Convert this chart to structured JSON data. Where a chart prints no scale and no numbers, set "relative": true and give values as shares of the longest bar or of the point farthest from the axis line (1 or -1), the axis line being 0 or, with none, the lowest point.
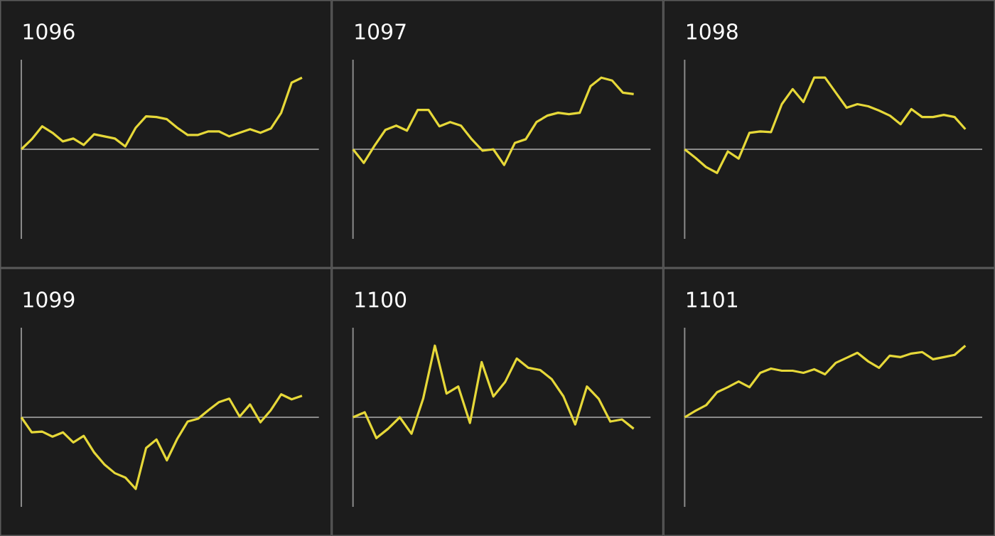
{
  "chart_data": [
    {
      "type": "line",
      "title": "1096",
      "relative": true,
      "color": "#e6d839",
      "categories": [
        null,
        null,
        null,
        null,
        null,
        null,
        null,
        null,
        null,
        null,
        null,
        null,
        null,
        null,
        null,
        null,
        null,
        null,
        null,
        null,
        null,
        null,
        null,
        null,
        null,
        null,
        null,
        null
      ],
      "values": [
        0,
        0.14,
        0.32,
        0.23,
        0.11,
        0.15,
        0.06,
        0.21,
        0.18,
        0.15,
        0.04,
        0.3,
        0.46,
        0.45,
        0.42,
        0.3,
        0.2,
        0.2,
        0.25,
        0.25,
        0.18,
        0.23,
        0.28,
        0.23,
        0.29,
        0.51,
        0.93,
        1
      ]
    },
    {
      "type": "line",
      "title": "1097",
      "relative": true,
      "color": "#e6d839",
      "categories": [
        null,
        null,
        null,
        null,
        null,
        null,
        null,
        null,
        null,
        null,
        null,
        null,
        null,
        null,
        null,
        null,
        null,
        null,
        null,
        null,
        null,
        null,
        null,
        null,
        null,
        null,
        null
      ],
      "values": [
        0,
        -0.19,
        0.05,
        0.27,
        0.33,
        0.26,
        0.55,
        0.55,
        0.32,
        0.38,
        0.33,
        0.14,
        -0.02,
        0,
        -0.22,
        0.09,
        0.14,
        0.38,
        0.47,
        0.51,
        0.49,
        0.51,
        0.88,
        1,
        0.96,
        0.79,
        0.77
      ]
    },
    {
      "type": "line",
      "title": "1098",
      "relative": true,
      "color": "#e6d839",
      "categories": [
        null,
        null,
        null,
        null,
        null,
        null,
        null,
        null,
        null,
        null,
        null,
        null,
        null,
        null,
        null,
        null,
        null,
        null,
        null,
        null,
        null,
        null,
        null,
        null,
        null,
        null,
        null
      ],
      "values": [
        0,
        -0.12,
        -0.25,
        -0.33,
        -0.03,
        -0.13,
        0.23,
        0.25,
        0.24,
        0.63,
        0.84,
        0.66,
        1,
        1,
        0.79,
        0.58,
        0.63,
        0.6,
        0.54,
        0.47,
        0.35,
        0.56,
        0.45,
        0.45,
        0.48,
        0.45,
        0.28
      ]
    },
    {
      "type": "line",
      "title": "1099",
      "relative": true,
      "color": "#e6d839",
      "categories": [
        null,
        null,
        null,
        null,
        null,
        null,
        null,
        null,
        null,
        null,
        null,
        null,
        null,
        null,
        null,
        null,
        null,
        null,
        null,
        null,
        null,
        null,
        null,
        null,
        null,
        null,
        null,
        null
      ],
      "values": [
        0,
        -0.21,
        -0.2,
        -0.27,
        -0.21,
        -0.35,
        -0.26,
        -0.49,
        -0.66,
        -0.78,
        -0.84,
        -1,
        -0.43,
        -0.31,
        -0.6,
        -0.3,
        -0.06,
        -0.02,
        0.1,
        0.21,
        0.26,
        0.01,
        0.18,
        -0.07,
        0.1,
        0.32,
        0.25,
        0.3
      ]
    },
    {
      "type": "line",
      "title": "1100",
      "relative": true,
      "color": "#e6d839",
      "categories": [
        null,
        null,
        null,
        null,
        null,
        null,
        null,
        null,
        null,
        null,
        null,
        null,
        null,
        null,
        null,
        null,
        null,
        null,
        null,
        null,
        null,
        null,
        null,
        null,
        null
      ],
      "values": [
        0,
        0.07,
        -0.29,
        -0.16,
        0,
        -0.23,
        0.26,
        1,
        0.33,
        0.43,
        -0.08,
        0.77,
        0.29,
        0.49,
        0.82,
        0.69,
        0.66,
        0.53,
        0.29,
        -0.1,
        0.43,
        0.26,
        -0.06,
        -0.03,
        -0.16
      ]
    },
    {
      "type": "line",
      "title": "1101",
      "relative": true,
      "color": "#e6d839",
      "categories": [
        null,
        null,
        null,
        null,
        null,
        null,
        null,
        null,
        null,
        null,
        null,
        null,
        null,
        null,
        null,
        null,
        null,
        null,
        null,
        null,
        null,
        null,
        null,
        null,
        null,
        null,
        null
      ],
      "values": [
        0,
        0.09,
        0.17,
        0.35,
        0.42,
        0.5,
        0.42,
        0.62,
        0.68,
        0.65,
        0.65,
        0.62,
        0.67,
        0.6,
        0.76,
        0.83,
        0.9,
        0.78,
        0.69,
        0.86,
        0.84,
        0.89,
        0.91,
        0.81,
        0.84,
        0.87,
        1
      ]
    }
  ]
}
